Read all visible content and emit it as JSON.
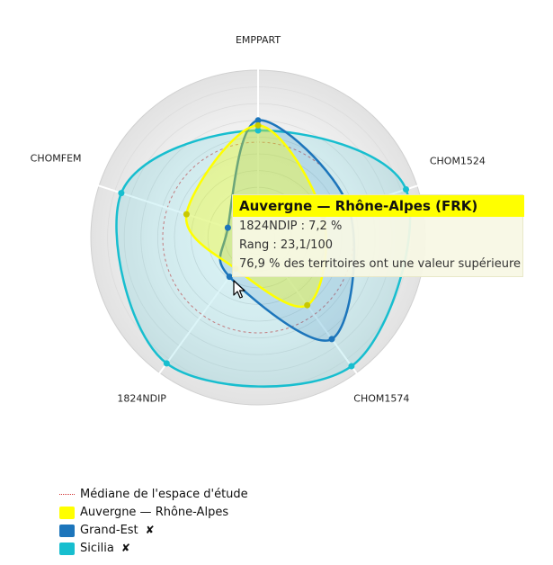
{
  "chart_data": {
    "type": "radar",
    "axes": [
      "EMPPART",
      "CHOM1524",
      "CHOM1574",
      "1824NDIP",
      "CHOMFEM"
    ],
    "rmax": 100,
    "median_ring": 57,
    "series": [
      {
        "name": "Auvergne — Rhône-Alpes",
        "color": "#ffff00",
        "values": [
          67,
          41,
          50,
          23,
          45
        ]
      },
      {
        "name": "Grand-Est",
        "color": "#1c75bb",
        "values": [
          70,
          57,
          75,
          29,
          19
        ]
      },
      {
        "name": "Sicilia",
        "color": "#17becf",
        "values": [
          64,
          93,
          95,
          93,
          86
        ]
      }
    ]
  },
  "tooltip": {
    "title": "Auvergne — Rhône-Alpes (FRK)",
    "line1": "1824NDIP : 7,2 %",
    "line2": "Rang : 23,1/100",
    "line3": "76,9 % des territoires ont une valeur supérieure"
  },
  "legend": {
    "median_label": "Médiane de l'espace d'étude",
    "items": [
      {
        "label": "Auvergne — Rhône-Alpes",
        "color": "#ffff00",
        "removable": false
      },
      {
        "label": "Grand-Est",
        "color": "#1c75bb",
        "removable": true,
        "remove_symbol": "✘"
      },
      {
        "label": "Sicilia",
        "color": "#17becf",
        "removable": true,
        "remove_symbol": "✘"
      }
    ]
  }
}
